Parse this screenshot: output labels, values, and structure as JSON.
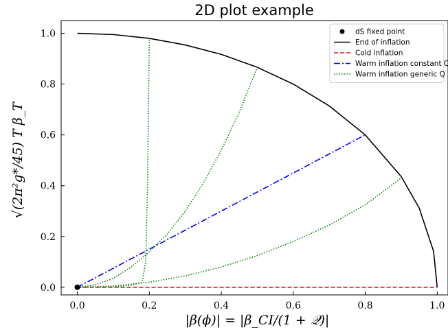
{
  "chart_data": {
    "type": "line",
    "title": "2D plot example",
    "xlabel": "|β(ϕ)| = |β_CI/(1 + 𝒬)|",
    "ylabel": "√(2π²g*/45) T β_T",
    "xlim": [
      -0.045,
      1.03
    ],
    "ylim": [
      -0.03,
      1.05
    ],
    "xticks": [
      "0.0",
      "0.2",
      "0.4",
      "0.6",
      "0.8",
      "1.0"
    ],
    "xtick_values": [
      0,
      0.2,
      0.4,
      0.6,
      0.8,
      1.0
    ],
    "yticks": [
      "0.0",
      "0.2",
      "0.4",
      "0.6",
      "0.8",
      "1.0"
    ],
    "ytick_values": [
      0,
      0.2,
      0.4,
      0.6,
      0.8,
      1.0
    ],
    "grid": false,
    "legend_position": "top-right",
    "series": [
      {
        "name": "dS fixed point",
        "kind": "point",
        "color": "#000000",
        "x": [
          0
        ],
        "y": [
          0
        ]
      },
      {
        "name": "End of inflation",
        "kind": "line",
        "style": "solid",
        "color": "#000000",
        "x": [
          0,
          0.1,
          0.2,
          0.3,
          0.4,
          0.5,
          0.6,
          0.7,
          0.8,
          0.9,
          0.95,
          0.99,
          1.0
        ],
        "y": [
          1.0,
          0.995,
          0.98,
          0.954,
          0.917,
          0.866,
          0.8,
          0.714,
          0.6,
          0.436,
          0.312,
          0.141,
          0.0
        ]
      },
      {
        "name": "Cold inflation",
        "kind": "line",
        "style": "dashed",
        "color": "#e8161b",
        "x": [
          0,
          1.0
        ],
        "y": [
          0,
          0
        ]
      },
      {
        "name": "Warm inflation constant Q",
        "kind": "line",
        "style": "dashdot",
        "color": "#0000ff",
        "x": [
          0,
          0.8
        ],
        "y": [
          0,
          0.6
        ]
      },
      {
        "name": "Warm inflation generic Q",
        "kind": "line",
        "style": "dotted",
        "color": "#008000",
        "x": [
          0,
          0.05,
          0.1,
          0.15,
          0.18,
          0.19,
          0.195,
          0.2
        ],
        "y": [
          0,
          0.001,
          0.003,
          0.008,
          0.02,
          0.1,
          0.4,
          0.98
        ]
      },
      {
        "name": "",
        "kind": "line",
        "style": "dotted",
        "color": "#008000",
        "x": [
          0,
          0.05,
          0.1,
          0.15,
          0.2,
          0.25,
          0.3,
          0.35,
          0.4,
          0.45,
          0.5
        ],
        "y": [
          0,
          0.01,
          0.035,
          0.08,
          0.14,
          0.21,
          0.3,
          0.41,
          0.54,
          0.69,
          0.866
        ]
      },
      {
        "name": "",
        "kind": "line",
        "style": "dotted",
        "color": "#008000",
        "x": [
          0,
          0.1,
          0.2,
          0.3,
          0.4,
          0.5,
          0.6,
          0.7,
          0.8,
          0.9
        ],
        "y": [
          0,
          0.005,
          0.02,
          0.045,
          0.08,
          0.125,
          0.18,
          0.245,
          0.325,
          0.43
        ]
      }
    ]
  }
}
